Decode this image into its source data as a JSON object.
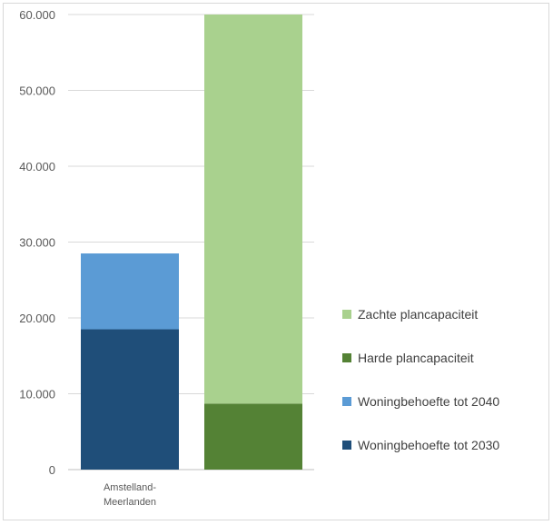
{
  "chart_data": {
    "type": "bar",
    "stacked": true,
    "categories": [
      "Amstelland-Meerlanden",
      ""
    ],
    "category_label_lines": [
      [
        "Amstelland-",
        "Meerlanden"
      ],
      []
    ],
    "series": [
      {
        "name": "Woningbehoefte tot 2030",
        "color": "#1f4e79",
        "values": [
          18500,
          0
        ]
      },
      {
        "name": "Woningbehoefte tot 2040",
        "color": "#5b9bd5",
        "values": [
          10000,
          0
        ]
      },
      {
        "name": "Harde plancapaciteit",
        "color": "#548235",
        "values": [
          0,
          8700
        ]
      },
      {
        "name": "Zachte plancapaciteit",
        "color": "#a9d18e",
        "values": [
          0,
          51300
        ]
      }
    ],
    "yticks": [
      0,
      10000,
      20000,
      30000,
      40000,
      50000,
      60000
    ],
    "ytick_labels": [
      "0",
      "10.000",
      "20.000",
      "30.000",
      "40.000",
      "50.000",
      "60.000"
    ],
    "ylim": [
      0,
      60000
    ],
    "grid": true,
    "legend_position": "right",
    "legend_order": [
      "Zachte plancapaciteit",
      "Harde plancapaciteit",
      "Woningbehoefte tot 2040",
      "Woningbehoefte tot 2030"
    ],
    "title": "",
    "xlabel": "",
    "ylabel": ""
  }
}
